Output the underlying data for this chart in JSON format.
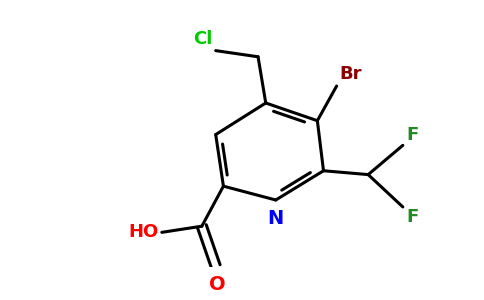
{
  "background_color": "#ffffff",
  "ring_color": "#000000",
  "bond_width": 2.2,
  "atom_colors": {
    "N": "#0000ff",
    "Br": "#8b0000",
    "Cl": "#00cc00",
    "F": "#228b22",
    "O": "#ff0000",
    "C": "#000000",
    "H": "#000000"
  },
  "figsize": [
    4.84,
    3.0
  ],
  "dpi": 100
}
